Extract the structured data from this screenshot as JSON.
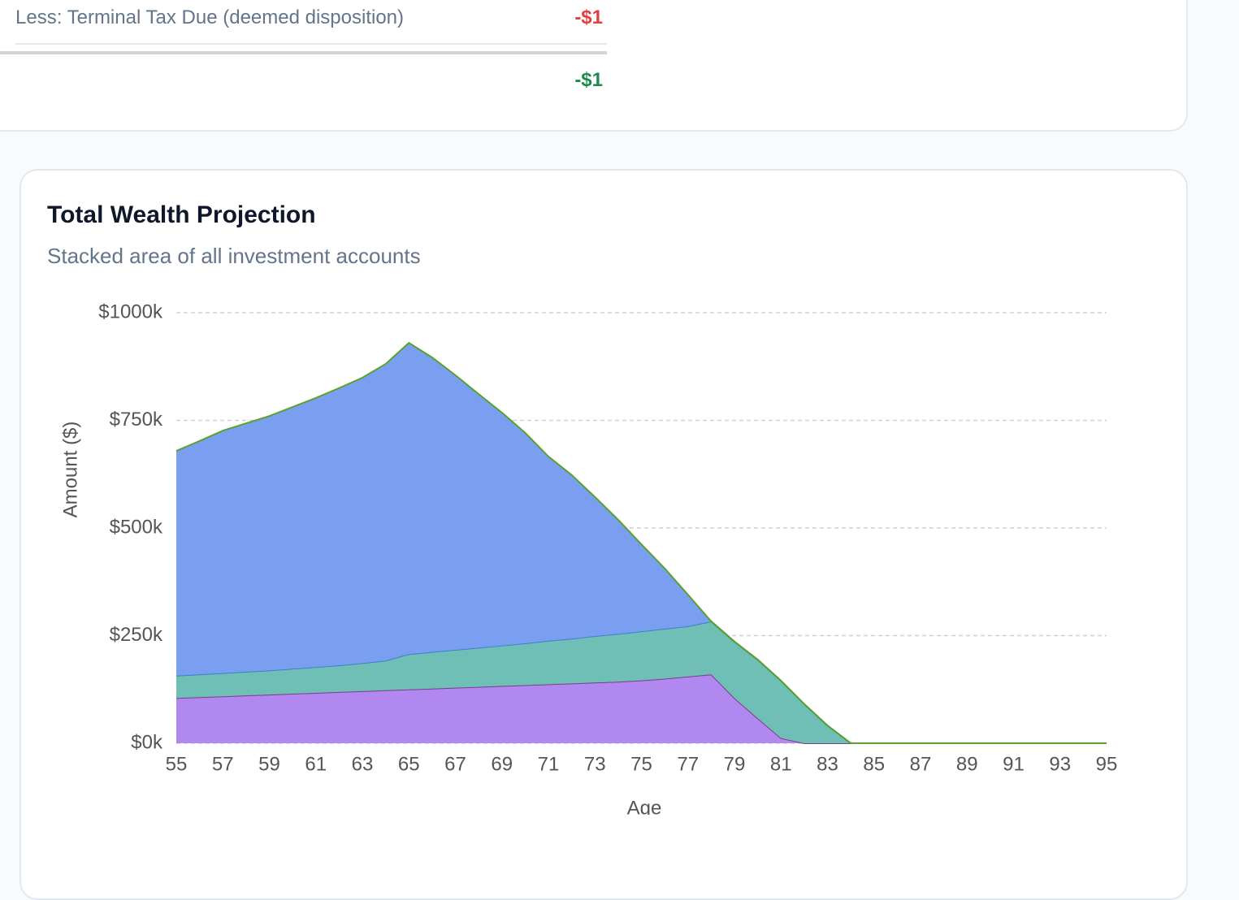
{
  "summary": {
    "rows": [
      {
        "label": "Less: Terminal Tax Due (deemed disposition)",
        "value": "-$1"
      }
    ],
    "total": "-$1"
  },
  "chart_data": {
    "type": "stacked_area",
    "title": "Total Wealth Projection",
    "subtitle": "Stacked area of all investment accounts",
    "x_label": "Age",
    "y_label": "Amount ($)",
    "x": [
      55,
      56,
      57,
      58,
      59,
      60,
      61,
      62,
      63,
      64,
      65,
      66,
      67,
      68,
      69,
      70,
      71,
      72,
      73,
      74,
      75,
      76,
      77,
      78,
      79,
      80,
      81,
      82,
      83,
      84,
      85,
      86,
      87,
      88,
      89,
      90,
      91,
      92,
      93,
      94,
      95
    ],
    "series": [
      {
        "color": "#b088f0",
        "stroke": "#7a3d8a",
        "values": [
          105000,
          107000,
          109000,
          111000,
          113000,
          115000,
          117000,
          119000,
          121000,
          123000,
          125000,
          127000,
          129000,
          131000,
          133000,
          135000,
          137000,
          139000,
          141000,
          143000,
          146000,
          150000,
          155000,
          160000,
          105000,
          58000,
          12000,
          0,
          0,
          0,
          0,
          0,
          0,
          0,
          0,
          0,
          0,
          0,
          0,
          0,
          0
        ]
      },
      {
        "color": "#6fbfb6",
        "stroke": "#3b82c4",
        "values": [
          52000,
          53000,
          54000,
          55000,
          56000,
          58000,
          60000,
          62000,
          65000,
          69000,
          82000,
          85000,
          88000,
          91000,
          94000,
          97000,
          101000,
          104000,
          108000,
          111000,
          114000,
          116000,
          117000,
          123000,
          131000,
          136000,
          133000,
          91000,
          41000,
          0,
          0,
          0,
          0,
          0,
          0,
          0,
          0,
          0,
          0,
          0,
          0
        ]
      },
      {
        "color": "#7b9ff0",
        "stroke": "#5aa02c",
        "values": [
          522000,
          542000,
          563000,
          577000,
          591000,
          608000,
          625000,
          644000,
          663000,
          689000,
          723000,
          684000,
          638000,
          589000,
          541000,
          489000,
          428000,
          380000,
          323000,
          265000,
          202000,
          140000,
          73000,
          0,
          0,
          0,
          0,
          0,
          0,
          0,
          0,
          0,
          0,
          0,
          0,
          0,
          0,
          0,
          0,
          0,
          0
        ]
      }
    ],
    "xlim": [
      55,
      95
    ],
    "xticks": [
      55,
      57,
      59,
      61,
      63,
      65,
      67,
      69,
      71,
      73,
      75,
      77,
      79,
      81,
      83,
      85,
      87,
      89,
      91,
      93,
      95
    ],
    "ylim": [
      0,
      1000000
    ],
    "yticks": [
      {
        "value": 0,
        "label": "$0k"
      },
      {
        "value": 250000,
        "label": "$250k"
      },
      {
        "value": 500000,
        "label": "$500k"
      },
      {
        "value": 750000,
        "label": "$750k"
      },
      {
        "value": 1000000,
        "label": "$1000k"
      }
    ],
    "grid": true
  }
}
